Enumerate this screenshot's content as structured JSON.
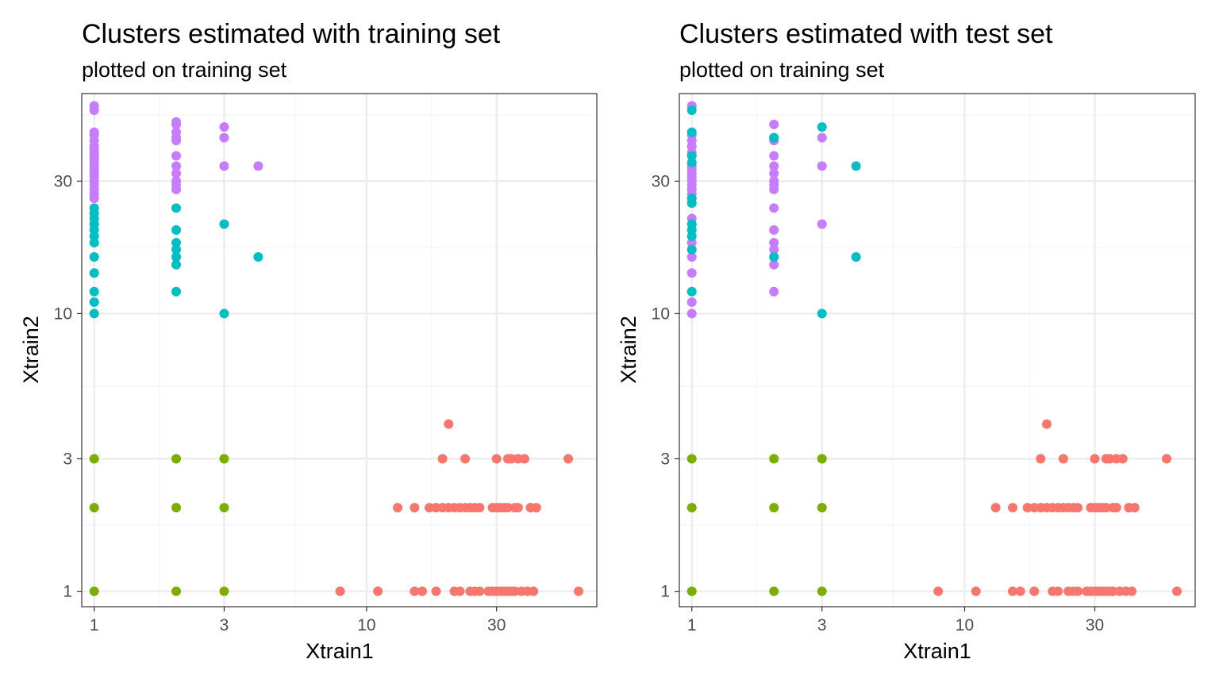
{
  "colors": {
    "cluster_red": "#F8766D",
    "cluster_green": "#7CAE00",
    "cluster_teal": "#00BFC4",
    "cluster_purple": "#C77CFF",
    "grid_major": "#EBEBEB",
    "grid_minor": "#F5F5F5",
    "panel_border": "#333333",
    "tick_text": "#4D4D4D"
  },
  "chart_data": [
    {
      "type": "scatter",
      "title": "Clusters estimated with training set",
      "subtitle": "plotted on training set",
      "xlabel": "Xtrain1",
      "ylabel": "Xtrain2",
      "x_scale": "log10",
      "y_scale": "log10",
      "xlim": [
        0.9,
        70
      ],
      "ylim": [
        0.88,
        62
      ],
      "x_ticks": [
        {
          "value": 1,
          "label": "1"
        },
        {
          "value": 3,
          "label": "3"
        },
        {
          "value": 10,
          "label": "10"
        },
        {
          "value": 30,
          "label": "30"
        }
      ],
      "y_ticks": [
        {
          "value": 1,
          "label": "1"
        },
        {
          "value": 3,
          "label": "3"
        },
        {
          "value": 10,
          "label": "10"
        },
        {
          "value": 30,
          "label": "30"
        }
      ],
      "legend": "none",
      "grid": true,
      "series": [
        {
          "color": "#F8766D",
          "x": [
            8,
            11,
            15,
            15,
            16,
            17,
            18,
            18,
            19,
            19,
            20,
            20,
            21,
            21,
            22,
            22,
            23,
            23,
            24,
            25,
            25,
            26,
            26,
            28,
            29,
            29,
            30,
            30,
            30,
            31,
            31,
            32,
            32,
            33,
            33,
            33,
            34,
            34,
            35,
            35,
            36,
            36,
            37,
            38,
            39,
            40,
            40,
            41,
            42,
            55,
            60,
            13,
            24
          ],
          "y": [
            1,
            1,
            1,
            2,
            1,
            2,
            1,
            2,
            2,
            3,
            2,
            4,
            1,
            2,
            1,
            2,
            2,
            3,
            1,
            1,
            2,
            1,
            2,
            1,
            1,
            2,
            1,
            2,
            3,
            1,
            2,
            1,
            2,
            1,
            2,
            3,
            1,
            3,
            1,
            2,
            2,
            3,
            1,
            3,
            1,
            2,
            2,
            1,
            2,
            3,
            1,
            2,
            2
          ]
        },
        {
          "color": "#7CAE00",
          "x": [
            1,
            1,
            1,
            2,
            2,
            2,
            3,
            3,
            3
          ],
          "y": [
            1,
            2,
            3,
            1,
            2,
            3,
            1,
            2,
            3
          ]
        },
        {
          "color": "#00BFC4",
          "x": [
            1,
            1,
            1,
            1,
            1,
            1,
            1,
            1,
            1,
            1,
            1,
            1,
            2,
            2,
            2,
            2,
            2,
            2,
            2,
            3,
            3,
            4
          ],
          "y": [
            10,
            11,
            12,
            14,
            16,
            18,
            19,
            20,
            21,
            22,
            23,
            24,
            12,
            15,
            16,
            17,
            18,
            20,
            24,
            10,
            21,
            16
          ]
        },
        {
          "color": "#C77CFF",
          "x": [
            1,
            1,
            1,
            1,
            1,
            1,
            1,
            1,
            1,
            1,
            1,
            1,
            1,
            1,
            1,
            1,
            1,
            1,
            1,
            1,
            2,
            2,
            2,
            2,
            2,
            2,
            2,
            2,
            2,
            2,
            2,
            3,
            3,
            3,
            4
          ],
          "y": [
            26,
            27,
            28,
            29,
            30,
            31,
            32,
            33,
            34,
            35,
            36,
            38,
            40,
            42,
            44,
            45,
            54,
            56,
            37,
            39,
            28,
            29,
            30,
            32,
            34,
            37,
            42,
            43,
            45,
            49,
            48,
            34,
            43,
            47,
            34
          ]
        }
      ]
    },
    {
      "type": "scatter",
      "title": "Clusters estimated with test set",
      "subtitle": "plotted on training set",
      "xlabel": "Xtrain1",
      "ylabel": "Xtrain2",
      "x_scale": "log10",
      "y_scale": "log10",
      "xlim": [
        0.9,
        70
      ],
      "ylim": [
        0.88,
        62
      ],
      "x_ticks": [
        {
          "value": 1,
          "label": "1"
        },
        {
          "value": 3,
          "label": "3"
        },
        {
          "value": 10,
          "label": "10"
        },
        {
          "value": 30,
          "label": "30"
        }
      ],
      "y_ticks": [
        {
          "value": 1,
          "label": "1"
        },
        {
          "value": 3,
          "label": "3"
        },
        {
          "value": 10,
          "label": "10"
        },
        {
          "value": 30,
          "label": "30"
        }
      ],
      "legend": "none",
      "grid": true,
      "series": [
        {
          "color": "#F8766D",
          "x": [
            8,
            11,
            15,
            15,
            16,
            17,
            18,
            18,
            19,
            19,
            20,
            20,
            21,
            21,
            22,
            22,
            23,
            23,
            24,
            25,
            25,
            26,
            26,
            28,
            29,
            29,
            30,
            30,
            30,
            31,
            31,
            32,
            32,
            33,
            33,
            33,
            34,
            34,
            35,
            35,
            36,
            36,
            37,
            38,
            39,
            40,
            40,
            41,
            42,
            55,
            60,
            13,
            24
          ],
          "y": [
            1,
            1,
            1,
            2,
            1,
            2,
            1,
            2,
            2,
            3,
            2,
            4,
            1,
            2,
            1,
            2,
            2,
            3,
            1,
            1,
            2,
            1,
            2,
            1,
            1,
            2,
            1,
            2,
            3,
            1,
            2,
            1,
            2,
            1,
            2,
            3,
            1,
            3,
            1,
            2,
            2,
            3,
            1,
            3,
            1,
            2,
            2,
            1,
            2,
            3,
            1,
            2,
            2
          ]
        },
        {
          "color": "#7CAE00",
          "x": [
            1,
            1,
            1,
            2,
            2,
            2,
            3,
            3,
            3
          ],
          "y": [
            1,
            2,
            3,
            1,
            2,
            3,
            1,
            2,
            3
          ]
        },
        {
          "color": "#C77CFF",
          "x": [
            1,
            1,
            1,
            1,
            1,
            1,
            1,
            1,
            1,
            1,
            1,
            1,
            1,
            1,
            1,
            1,
            1,
            1,
            1,
            2,
            2,
            2,
            2,
            2,
            2,
            2,
            2,
            2,
            2,
            2,
            2,
            2,
            2,
            2,
            3,
            3,
            3
          ],
          "y": [
            10,
            11,
            14,
            16,
            18,
            22,
            27,
            28,
            29,
            30,
            31,
            32,
            33,
            34,
            38,
            40,
            42,
            44,
            56,
            12,
            15,
            16,
            17,
            18,
            20,
            24,
            28,
            29,
            30,
            32,
            34,
            37,
            42,
            48,
            21,
            34,
            43
          ]
        },
        {
          "color": "#00BFC4",
          "x": [
            1,
            1,
            1,
            1,
            1,
            1,
            1,
            1,
            1,
            1,
            1,
            2,
            2,
            2,
            3,
            3,
            4,
            4
          ],
          "y": [
            12,
            17,
            19,
            20,
            21,
            25,
            26,
            35,
            37,
            45,
            54,
            16,
            43,
            43,
            10,
            47,
            34,
            16
          ]
        }
      ]
    }
  ]
}
